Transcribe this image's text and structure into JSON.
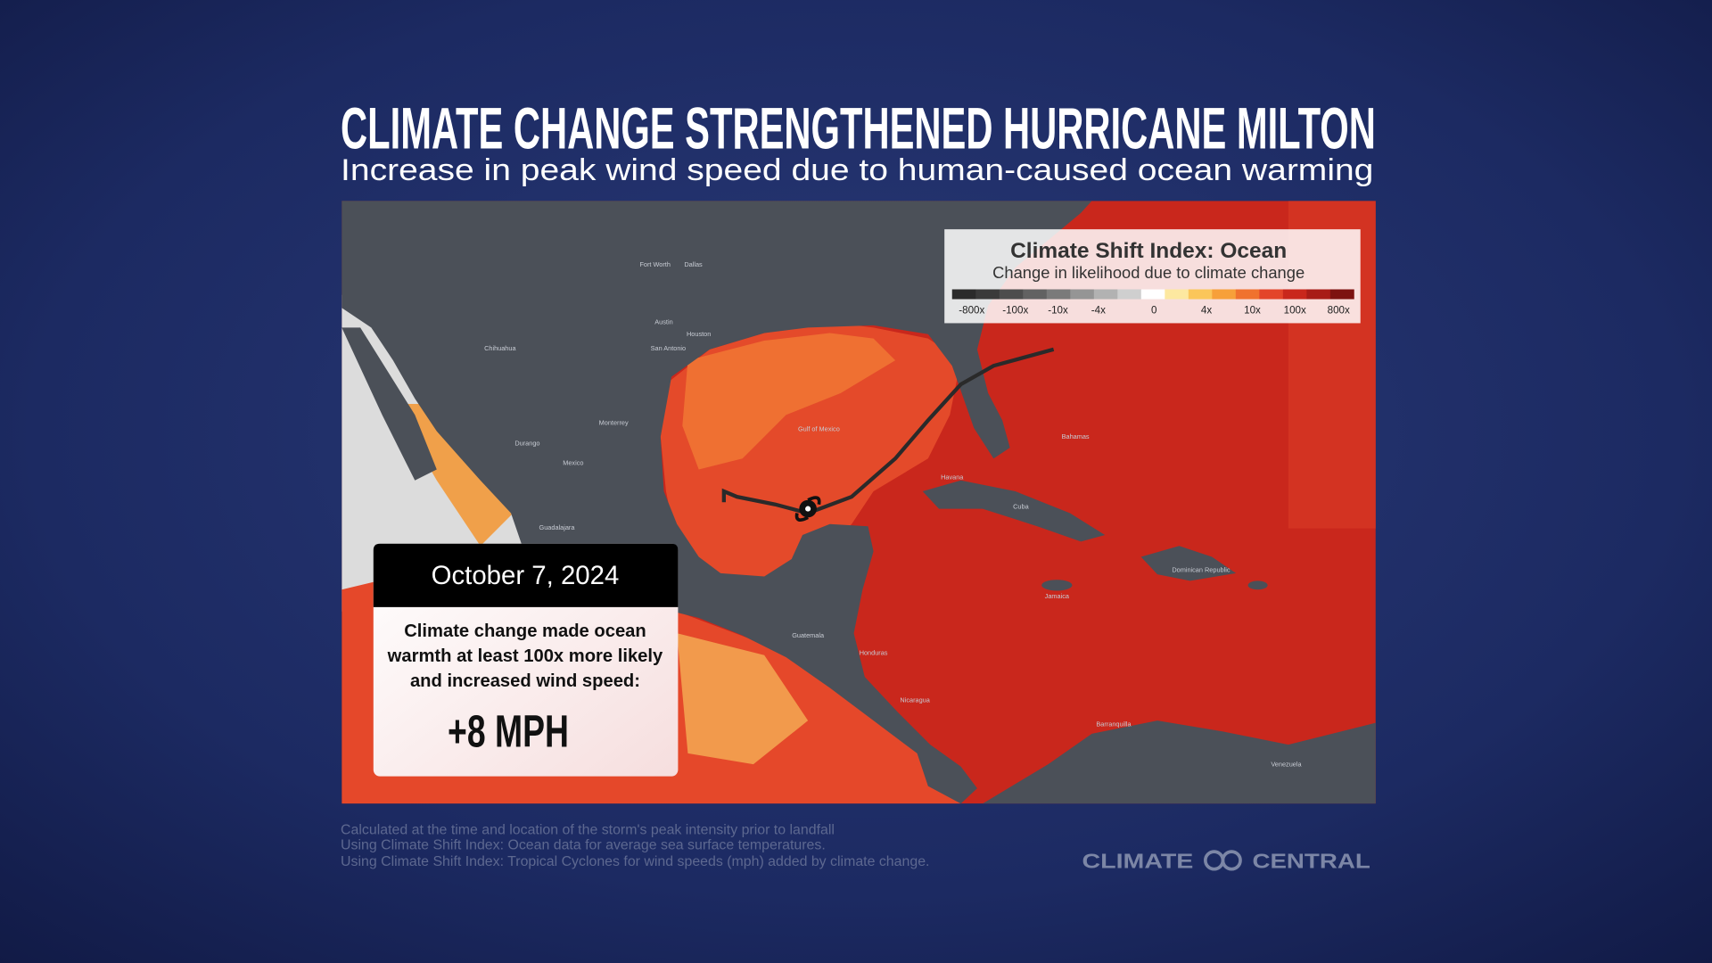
{
  "title": "CLIMATE CHANGE STRENGTHENED HURRICANE MILTON",
  "subtitle": "Increase in peak wind speed due to human-caused ocean warming",
  "legend": {
    "title": "Climate Shift Index: Ocean",
    "subtitle": "Change in likelihood due to climate change",
    "labels": [
      "-800x",
      "-100x",
      "-10x",
      "-4x",
      "0",
      "4x",
      "10x",
      "100x",
      "800x"
    ]
  },
  "callout": {
    "date": "October 7, 2024",
    "text": [
      "Climate change made ocean",
      "warmth at least 100x more likely",
      "and increased wind speed:"
    ],
    "value": "+8 MPH"
  },
  "map_labels": [
    "Gulf of Mexico",
    "Cuba",
    "Havana",
    "Bahamas",
    "Mexico",
    "Guadalajara",
    "Monterrey",
    "Houston",
    "San Antonio",
    "Austin",
    "Dallas",
    "Fort Worth",
    "Chihuahua",
    "Durango",
    "Guatemala",
    "Honduras",
    "Nicaragua",
    "Venezuela",
    "Barranquilla",
    "Dominican Republic",
    "Jamaica"
  ],
  "footnotes": [
    "Calculated at the time and location of the storm's peak intensity prior to landfall",
    "Using Climate Shift Index: Ocean data for average sea surface temperatures.",
    "Using Climate Shift Index: Tropical Cyclones for wind speeds (mph) added by climate change."
  ],
  "logo": [
    "CLIMATE",
    "CENTRAL"
  ]
}
